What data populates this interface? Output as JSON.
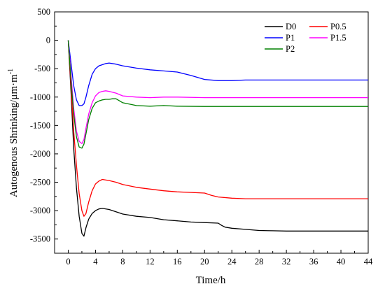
{
  "chart_data": {
    "type": "line",
    "xlabel": "Time/h",
    "ylabel": "Autogenous Shrinking/μm·m",
    "ylabel_superscript": "-1",
    "xlim": [
      -2,
      44
    ],
    "ylim": [
      -3750,
      500
    ],
    "xticks": [
      0,
      4,
      8,
      12,
      16,
      20,
      24,
      28,
      32,
      36,
      40,
      44
    ],
    "yticks": [
      500,
      0,
      -500,
      -1000,
      -1500,
      -2000,
      -2500,
      -3000,
      -3500
    ],
    "legend_position": "top-right",
    "grid": false,
    "series": [
      {
        "name": "D0",
        "color": "#000000",
        "x": [
          0,
          0.4,
          0.8,
          1.2,
          1.6,
          2,
          2.3,
          2.6,
          3,
          3.5,
          4,
          4.5,
          5,
          6,
          7,
          8,
          10,
          12,
          14,
          16,
          18,
          20,
          22,
          22.5,
          23,
          24,
          26,
          28,
          30,
          32,
          36,
          40,
          44
        ],
        "y": [
          0,
          -900,
          -1900,
          -2600,
          -3100,
          -3400,
          -3450,
          -3300,
          -3150,
          -3050,
          -3000,
          -2970,
          -2960,
          -2980,
          -3020,
          -3060,
          -3100,
          -3120,
          -3160,
          -3180,
          -3200,
          -3210,
          -3220,
          -3260,
          -3290,
          -3310,
          -3330,
          -3350,
          -3355,
          -3360,
          -3360,
          -3360,
          -3360
        ]
      },
      {
        "name": "P0.5",
        "color": "#ff0000",
        "x": [
          0,
          0.4,
          0.8,
          1.2,
          1.6,
          2,
          2.3,
          2.6,
          3,
          3.5,
          4,
          4.5,
          5,
          6,
          7,
          8,
          10,
          12,
          14,
          16,
          18,
          20,
          21,
          22,
          24,
          26,
          28,
          30,
          32,
          36,
          40,
          44
        ],
        "y": [
          0,
          -800,
          -1600,
          -2200,
          -2700,
          -3000,
          -3100,
          -3050,
          -2850,
          -2650,
          -2530,
          -2480,
          -2450,
          -2470,
          -2500,
          -2540,
          -2590,
          -2620,
          -2650,
          -2670,
          -2680,
          -2690,
          -2730,
          -2760,
          -2780,
          -2790,
          -2790,
          -2790,
          -2790,
          -2790,
          -2790,
          -2790
        ]
      },
      {
        "name": "P1",
        "color": "#0000ff",
        "x": [
          0,
          0.4,
          0.8,
          1.2,
          1.6,
          2,
          2.3,
          2.6,
          3,
          3.5,
          4,
          4.5,
          5,
          5.5,
          6,
          7,
          8,
          10,
          12,
          14,
          16,
          18,
          20,
          22,
          24,
          26,
          28,
          32,
          36,
          40,
          44
        ],
        "y": [
          0,
          -400,
          -800,
          -1050,
          -1150,
          -1150,
          -1120,
          -1000,
          -800,
          -600,
          -500,
          -450,
          -430,
          -410,
          -400,
          -420,
          -450,
          -490,
          -520,
          -540,
          -560,
          -620,
          -690,
          -710,
          -710,
          -700,
          -700,
          -700,
          -700,
          -700,
          -700
        ]
      },
      {
        "name": "P1.5",
        "color": "#ff00ff",
        "x": [
          0,
          0.4,
          0.8,
          1.2,
          1.6,
          2,
          2.3,
          2.6,
          3,
          3.5,
          4,
          4.5,
          5,
          5.5,
          6,
          7,
          8,
          10,
          12,
          14,
          16,
          20,
          24,
          28,
          32,
          36,
          40,
          44
        ],
        "y": [
          0,
          -600,
          -1200,
          -1600,
          -1780,
          -1820,
          -1750,
          -1550,
          -1300,
          -1100,
          -980,
          -920,
          -900,
          -890,
          -900,
          -930,
          -980,
          -1000,
          -1010,
          -1000,
          -1000,
          -1010,
          -1010,
          -1010,
          -1010,
          -1010,
          -1010,
          -1010
        ]
      },
      {
        "name": "P2",
        "color": "#008000",
        "x": [
          0,
          0.4,
          0.8,
          1.2,
          1.6,
          2,
          2.3,
          2.6,
          3,
          3.5,
          4,
          4.5,
          5,
          5.5,
          6,
          6.5,
          7,
          8,
          10,
          12,
          14,
          16,
          20,
          24,
          28,
          32,
          36,
          40,
          44
        ],
        "y": [
          0,
          -700,
          -1300,
          -1700,
          -1880,
          -1900,
          -1830,
          -1650,
          -1400,
          -1200,
          -1100,
          -1070,
          -1050,
          -1040,
          -1040,
          -1030,
          -1030,
          -1100,
          -1150,
          -1160,
          -1150,
          -1160,
          -1165,
          -1165,
          -1165,
          -1165,
          -1165,
          -1165,
          -1165
        ]
      }
    ]
  }
}
